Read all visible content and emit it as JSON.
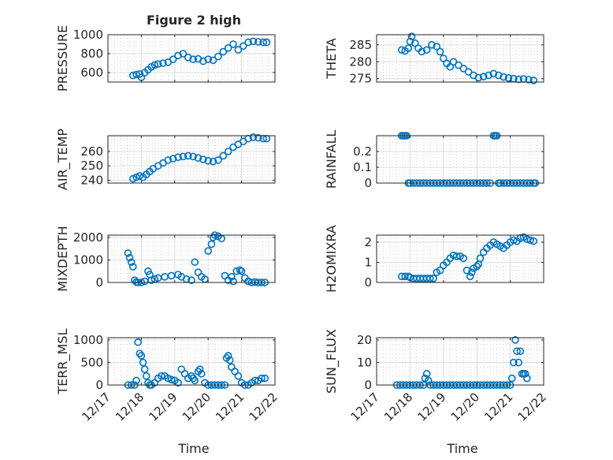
{
  "figure": {
    "title": "Figure 2 high",
    "marker_color": "#0072BD",
    "xlabel": "Time",
    "x_tick_labels": [
      "12/17",
      "12/18",
      "12/19",
      "12/20",
      "12/21",
      "12/22"
    ]
  },
  "chart_data": [
    {
      "type": "scatter",
      "name": "PRESSURE",
      "ylabel": "PRESSURE",
      "title": "Figure 2 high",
      "xlim": [
        17,
        22
      ],
      "ylim": [
        500,
        1000
      ],
      "yticks": [
        600,
        800,
        1000
      ],
      "ytick_labels": [
        "600",
        "800",
        "1000"
      ],
      "show_x_tick_labels": false,
      "grid": true,
      "x": [
        17.75,
        17.85,
        17.95,
        18.0,
        18.1,
        18.2,
        18.3,
        18.4,
        18.5,
        18.65,
        18.8,
        18.95,
        19.1,
        19.25,
        19.4,
        19.55,
        19.7,
        19.85,
        20.0,
        20.15,
        20.3,
        20.45,
        20.6,
        20.75,
        20.9,
        21.05,
        21.2,
        21.35,
        21.5,
        21.65,
        21.75
      ],
      "y": [
        570,
        580,
        585,
        550,
        600,
        630,
        660,
        680,
        690,
        700,
        710,
        740,
        780,
        800,
        760,
        740,
        745,
        720,
        740,
        730,
        770,
        820,
        860,
        900,
        840,
        880,
        920,
        930,
        925,
        920,
        920
      ]
    },
    {
      "type": "scatter",
      "name": "THETA",
      "ylabel": "THETA",
      "xlim": [
        17,
        22
      ],
      "ylim": [
        274,
        288
      ],
      "yticks": [
        275,
        280,
        285
      ],
      "ytick_labels": [
        "275",
        "280",
        "285"
      ],
      "show_x_tick_labels": false,
      "grid": true,
      "x": [
        17.75,
        17.85,
        17.95,
        18.0,
        18.05,
        18.15,
        18.25,
        18.35,
        18.5,
        18.65,
        18.8,
        18.9,
        19.0,
        19.1,
        19.2,
        19.3,
        19.45,
        19.6,
        19.75,
        19.9,
        20.05,
        20.2,
        20.35,
        20.5,
        20.65,
        20.8,
        20.95,
        21.1,
        21.25,
        21.4,
        21.55,
        21.7
      ],
      "y": [
        283.5,
        283.2,
        284,
        286,
        287.5,
        285.5,
        284,
        283,
        283.5,
        285,
        284.5,
        283,
        281,
        279.5,
        278.5,
        280,
        279,
        278,
        277,
        276,
        275.3,
        275.6,
        276,
        276.5,
        276,
        275.5,
        275.2,
        275,
        274.8,
        274.9,
        274.7,
        274.5
      ]
    },
    {
      "type": "scatter",
      "name": "AIR_TEMP",
      "ylabel": "AIR_TEMP",
      "xlim": [
        17,
        22
      ],
      "ylim": [
        238,
        271
      ],
      "yticks": [
        240,
        250,
        260
      ],
      "ytick_labels": [
        "240",
        "250",
        "260"
      ],
      "show_x_tick_labels": false,
      "grid": true,
      "x": [
        17.75,
        17.85,
        17.95,
        18.05,
        18.15,
        18.25,
        18.35,
        18.5,
        18.65,
        18.8,
        18.95,
        19.1,
        19.25,
        19.4,
        19.55,
        19.7,
        19.85,
        20.0,
        20.15,
        20.3,
        20.45,
        20.6,
        20.75,
        20.9,
        21.05,
        21.2,
        21.35,
        21.5,
        21.65,
        21.75
      ],
      "y": [
        241,
        242,
        243,
        242,
        244,
        246,
        248,
        250,
        252,
        254,
        255,
        256,
        256.5,
        257,
        256.5,
        255.5,
        254.5,
        253.5,
        253,
        254,
        257,
        260,
        263,
        265,
        267,
        269,
        270,
        269.5,
        269,
        269
      ]
    },
    {
      "type": "scatter",
      "name": "RAINFALL",
      "ylabel": "RAINFALL",
      "xlim": [
        17,
        22
      ],
      "ylim": [
        0,
        0.3
      ],
      "yticks": [
        0,
        0.1,
        0.2
      ],
      "ytick_labels": [
        "0",
        "0.1",
        "0.2"
      ],
      "show_x_tick_labels": false,
      "grid": true,
      "x": [
        17.75,
        17.8,
        17.85,
        17.9,
        17.95,
        18.0,
        18.1,
        18.2,
        18.3,
        18.4,
        18.5,
        18.6,
        18.7,
        18.8,
        18.9,
        19.0,
        19.1,
        19.2,
        19.3,
        19.4,
        19.5,
        19.6,
        19.7,
        19.8,
        19.9,
        20.0,
        20.1,
        20.2,
        20.3,
        20.4,
        20.5,
        20.55,
        20.6,
        20.65,
        20.7,
        20.8,
        20.9,
        21.0,
        21.1,
        21.2,
        21.3,
        21.4,
        21.5,
        21.6,
        21.7,
        21.75
      ],
      "y": [
        0.3,
        0.3,
        0.3,
        0.3,
        0,
        0,
        0,
        0,
        0,
        0,
        0,
        0,
        0,
        0,
        0,
        0,
        0,
        0,
        0,
        0,
        0,
        0,
        0,
        0,
        0,
        0,
        0,
        0,
        0,
        0,
        0.3,
        0.3,
        0.3,
        0,
        0,
        0,
        0,
        0,
        0,
        0,
        0,
        0,
        0,
        0,
        0,
        0
      ]
    },
    {
      "type": "scatter",
      "name": "MIXDEPTH",
      "ylabel": "MIXDEPTH",
      "xlim": [
        17,
        22
      ],
      "ylim": [
        0,
        2100
      ],
      "yticks": [
        0,
        1000,
        2000
      ],
      "ytick_labels": [
        "0",
        "1000",
        "2000"
      ],
      "show_x_tick_labels": false,
      "grid": true,
      "x": [
        17.6,
        17.65,
        17.7,
        17.75,
        17.8,
        17.85,
        17.9,
        18.0,
        18.1,
        18.2,
        18.25,
        18.3,
        18.4,
        18.5,
        18.7,
        18.9,
        19.1,
        19.2,
        19.35,
        19.5,
        19.6,
        19.7,
        19.8,
        19.9,
        20.0,
        20.1,
        20.15,
        20.2,
        20.3,
        20.4,
        20.5,
        20.6,
        20.7,
        20.75,
        20.85,
        20.95,
        21.0,
        21.1,
        21.2,
        21.3,
        21.4,
        21.5,
        21.6,
        21.7
      ],
      "y": [
        1300,
        1100,
        900,
        700,
        100,
        20,
        0,
        0,
        50,
        500,
        350,
        100,
        150,
        200,
        250,
        300,
        350,
        250,
        150,
        100,
        900,
        450,
        250,
        150,
        1400,
        1700,
        2000,
        2100,
        2050,
        1950,
        300,
        100,
        250,
        50,
        500,
        550,
        500,
        200,
        50,
        0,
        20,
        0,
        0,
        0
      ]
    },
    {
      "type": "scatter",
      "name": "H2OMIXRA",
      "ylabel": "H2OMIXRA",
      "xlim": [
        17,
        22
      ],
      "ylim": [
        0,
        2.35
      ],
      "yticks": [
        0,
        1,
        2
      ],
      "ytick_labels": [
        "0",
        "1",
        "2"
      ],
      "show_x_tick_labels": false,
      "grid": true,
      "x": [
        17.75,
        17.85,
        17.95,
        18.0,
        18.1,
        18.2,
        18.3,
        18.4,
        18.5,
        18.6,
        18.7,
        18.8,
        18.9,
        19.0,
        19.1,
        19.2,
        19.3,
        19.4,
        19.5,
        19.6,
        19.7,
        19.8,
        19.85,
        19.9,
        20.0,
        20.05,
        20.1,
        20.2,
        20.3,
        20.4,
        20.5,
        20.6,
        20.7,
        20.8,
        20.9,
        21.0,
        21.1,
        21.2,
        21.3,
        21.4,
        21.5,
        21.6,
        21.7
      ],
      "y": [
        0.3,
        0.3,
        0.3,
        0.25,
        0.2,
        0.2,
        0.2,
        0.2,
        0.2,
        0.2,
        0.2,
        0.5,
        0.6,
        0.85,
        1.0,
        1.2,
        1.35,
        1.3,
        1.3,
        1.2,
        0.6,
        0.3,
        0.5,
        0.7,
        0.8,
        0.9,
        1.2,
        1.5,
        1.7,
        1.85,
        2.0,
        1.9,
        1.8,
        1.7,
        1.85,
        2.0,
        2.1,
        2.05,
        2.2,
        2.25,
        2.15,
        2.1,
        2.05
      ]
    },
    {
      "type": "scatter",
      "name": "TERR_MSL",
      "ylabel": "TERR_MSL",
      "xlim": [
        17,
        22
      ],
      "ylim": [
        0,
        1050
      ],
      "yticks": [
        0,
        500,
        1000
      ],
      "ytick_labels": [
        "0",
        "500",
        "1000"
      ],
      "show_x_tick_labels": true,
      "grid": true,
      "x": [
        17.6,
        17.7,
        17.8,
        17.85,
        17.9,
        17.95,
        18.0,
        18.05,
        18.1,
        18.15,
        18.2,
        18.25,
        18.3,
        18.4,
        18.5,
        18.6,
        18.7,
        18.8,
        18.9,
        19.0,
        19.1,
        19.2,
        19.3,
        19.4,
        19.5,
        19.55,
        19.6,
        19.7,
        19.75,
        19.8,
        19.9,
        20.0,
        20.1,
        20.2,
        20.3,
        20.4,
        20.5,
        20.55,
        20.6,
        20.65,
        20.7,
        20.8,
        20.9,
        21.0,
        21.1,
        21.2,
        21.3,
        21.4,
        21.5,
        21.6,
        21.7
      ],
      "y": [
        0,
        0,
        0,
        100,
        950,
        700,
        650,
        500,
        350,
        200,
        50,
        0,
        0,
        50,
        150,
        200,
        200,
        150,
        120,
        100,
        50,
        350,
        250,
        150,
        200,
        150,
        100,
        300,
        350,
        250,
        50,
        0,
        0,
        0,
        0,
        0,
        0,
        600,
        650,
        550,
        400,
        300,
        200,
        50,
        0,
        0,
        50,
        100,
        100,
        150,
        150
      ]
    },
    {
      "type": "scatter",
      "name": "SUN_FLUX",
      "ylabel": "SUN_FLUX",
      "xlim": [
        17,
        22
      ],
      "ylim": [
        0,
        21
      ],
      "yticks": [
        0,
        10,
        20
      ],
      "ytick_labels": [
        "0",
        "10",
        "20"
      ],
      "show_x_tick_labels": true,
      "grid": true,
      "x": [
        17.6,
        17.7,
        17.8,
        17.9,
        18.0,
        18.1,
        18.2,
        18.3,
        18.4,
        18.45,
        18.5,
        18.55,
        18.6,
        18.7,
        18.8,
        18.9,
        19.0,
        19.1,
        19.2,
        19.3,
        19.4,
        19.5,
        19.6,
        19.7,
        19.8,
        19.9,
        20.0,
        20.1,
        20.2,
        20.3,
        20.4,
        20.5,
        20.6,
        20.7,
        20.8,
        20.9,
        21.0,
        21.05,
        21.1,
        21.15,
        21.2,
        21.25,
        21.3,
        21.35,
        21.4,
        21.45,
        21.5
      ],
      "y": [
        0,
        0,
        0,
        0,
        0,
        0,
        0,
        0,
        0,
        3,
        5,
        2,
        0,
        0,
        0,
        0,
        0,
        0,
        0,
        0,
        0,
        0,
        0,
        0,
        0,
        0,
        0,
        0,
        0,
        0,
        0,
        0,
        0,
        0,
        0,
        0,
        0,
        3,
        10,
        20,
        15,
        10,
        15,
        5,
        5,
        5,
        3
      ]
    }
  ]
}
